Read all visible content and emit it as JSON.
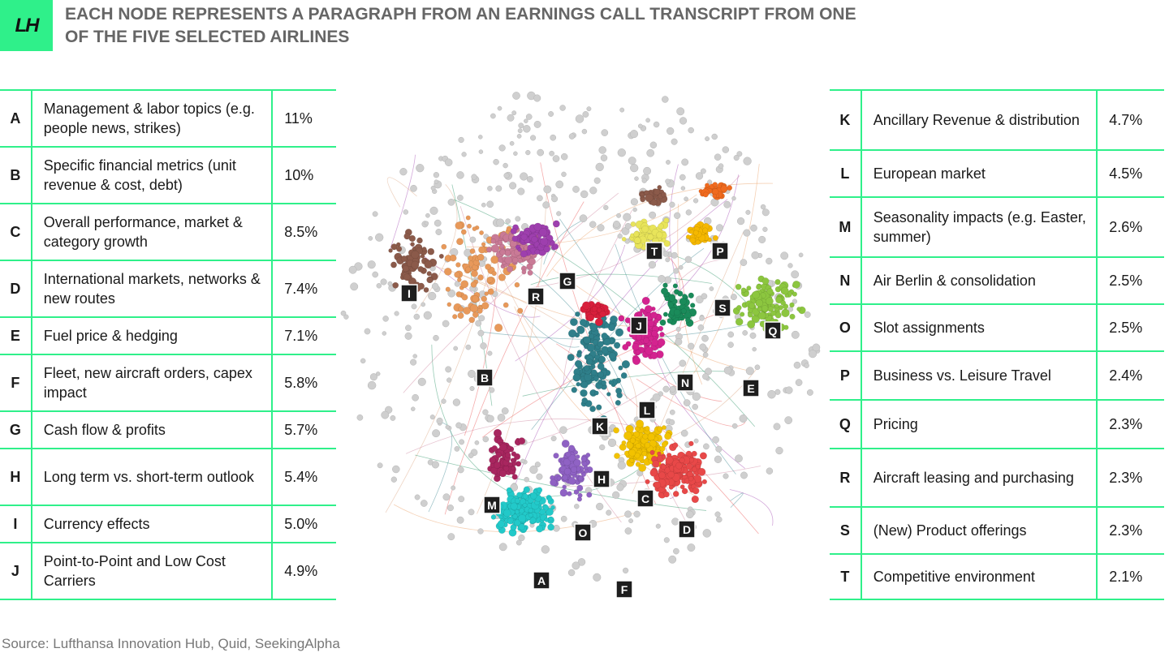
{
  "logo": "LH",
  "title": "EACH NODE REPRESENTS A PARAGRAPH FROM AN EARNINGS CALL TRANSCRIPT FROM ONE OF THE FIVE SELECTED AIRLINES",
  "legend_left": [
    {
      "key": "A",
      "label": "Management & labor topics (e.g. people news, strikes)",
      "pct": "11%",
      "height": 70
    },
    {
      "key": "B",
      "label": "Specific financial metrics (unit revenue & cost, debt)",
      "pct": "10%",
      "height": 70
    },
    {
      "key": "C",
      "label": "Overall performance, market & category growth",
      "pct": "8.5%",
      "height": 70
    },
    {
      "key": "D",
      "label": "International markets, networks & new routes",
      "pct": "7.4%",
      "height": 70
    },
    {
      "key": "E",
      "label": "Fuel price & hedging",
      "pct": "7.1%",
      "height": 46
    },
    {
      "key": "F",
      "label": "Fleet, new aircraft orders, capex impact",
      "pct": "5.8%",
      "height": 70
    },
    {
      "key": "G",
      "label": "Cash flow & profits",
      "pct": "5.7%",
      "height": 46
    },
    {
      "key": "H",
      "label": "Long term vs. short-term outlook",
      "pct": "5.4%",
      "height": 70
    },
    {
      "key": "I",
      "label": "Currency effects",
      "pct": "5.0%",
      "height": 46
    },
    {
      "key": "J",
      "label": "Point-to-Point and Low Cost Carriers",
      "pct": "4.9%",
      "height": 70
    }
  ],
  "legend_right": [
    {
      "key": "K",
      "label": "Ancillary Revenue & distribution",
      "pct": "4.7%",
      "height": 74
    },
    {
      "key": "L",
      "label": "European market",
      "pct": "4.5%",
      "height": 58
    },
    {
      "key": "M",
      "label": "Seasonality impacts (e.g. Easter, summer)",
      "pct": "2.6%",
      "height": 74
    },
    {
      "key": "N",
      "label": "Air Berlin & consolidation",
      "pct": "2.5%",
      "height": 58
    },
    {
      "key": "O",
      "label": "Slot assignments",
      "pct": "2.5%",
      "height": 58
    },
    {
      "key": "P",
      "label": "Business vs. Leisure Travel",
      "pct": "2.4%",
      "height": 60
    },
    {
      "key": "Q",
      "label": "Pricing",
      "pct": "2.3%",
      "height": 60
    },
    {
      "key": "R",
      "label": "Aircraft leasing and purchasing",
      "pct": "2.3%",
      "height": 72
    },
    {
      "key": "S",
      "label": "(New) Product offerings",
      "pct": "2.3%",
      "height": 58
    },
    {
      "key": "T",
      "label": "Competitive environment",
      "pct": "2.1%",
      "height": 56
    }
  ],
  "network": {
    "clusters": [
      {
        "id": "I",
        "color": "#8b5a4a",
        "nodes": 70
      },
      {
        "id": "B-orange",
        "color": "#e8995a",
        "nodes": 90
      },
      {
        "id": "pink",
        "color": "#c97a96",
        "nodes": 90
      },
      {
        "id": "purple",
        "color": "#9e3fae",
        "nodes": 80
      },
      {
        "id": "teal",
        "color": "#2f7f8a",
        "nodes": 150
      },
      {
        "id": "cyan",
        "color": "#22c9c9",
        "nodes": 170
      },
      {
        "id": "violet",
        "color": "#8f62c4",
        "nodes": 90
      },
      {
        "id": "maroon",
        "color": "#a8265f",
        "nodes": 70
      },
      {
        "id": "yellow",
        "color": "#f2c200",
        "nodes": 150
      },
      {
        "id": "red",
        "color": "#e84848",
        "nodes": 150
      },
      {
        "id": "magenta",
        "color": "#d3238f",
        "nodes": 90
      },
      {
        "id": "crimson",
        "color": "#d81f3c",
        "nodes": 40
      },
      {
        "id": "darkgreen",
        "color": "#1a8b5a",
        "nodes": 50
      },
      {
        "id": "lime",
        "color": "#8cc63f",
        "nodes": 120
      },
      {
        "id": "paleyellow",
        "color": "#e8e45a",
        "nodes": 60
      },
      {
        "id": "orangeP",
        "color": "#f5b800",
        "nodes": 40
      },
      {
        "id": "orangeRed",
        "color": "#f06a1e",
        "nodes": 35
      },
      {
        "id": "brownT",
        "color": "#8b5a4a",
        "nodes": 30
      },
      {
        "id": "gray",
        "color": "#cfcfcf",
        "nodes": 520
      }
    ],
    "labels": [
      "I",
      "R",
      "G",
      "T",
      "P",
      "S",
      "Q",
      "J",
      "B",
      "N",
      "E",
      "L",
      "K",
      "H",
      "C",
      "M",
      "O",
      "D",
      "A",
      "F"
    ]
  },
  "source": "Source: Lufthansa Innovation Hub, Quid, SeekingAlpha"
}
